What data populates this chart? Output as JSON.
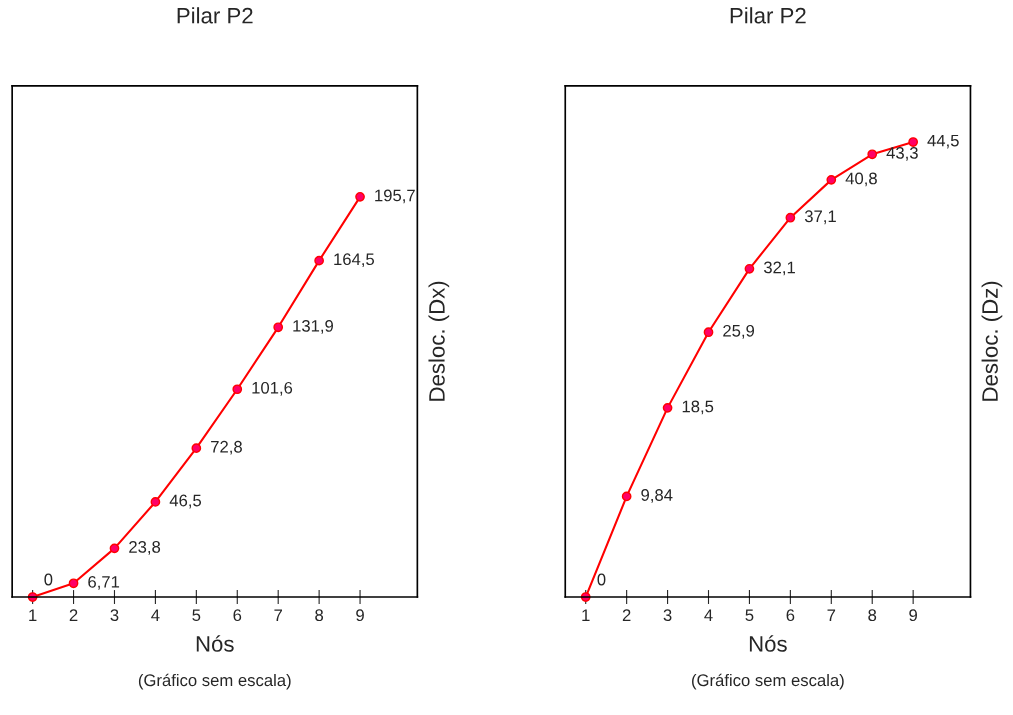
{
  "chart_data": [
    {
      "type": "line",
      "title": "Pilar P2",
      "xlabel": "Nós",
      "ylabel": "Desloc. (Dx)",
      "categories": [
        "1",
        "2",
        "3",
        "4",
        "5",
        "6",
        "7",
        "8",
        "9"
      ],
      "series": [
        {
          "color": "#ff0000",
          "values": [
            0,
            6.71,
            23.8,
            46.5,
            72.8,
            101.6,
            131.9,
            164.5,
            195.7
          ],
          "value_labels": [
            "0",
            "6,71",
            "23,8",
            "46,5",
            "72,8",
            "101,6",
            "131,9",
            "164,5",
            "195,7"
          ]
        }
      ],
      "ylim": [
        0,
        250
      ],
      "tick_labels": "x",
      "marker": "circle",
      "line_style": "solid",
      "grid": false,
      "annotations": [
        "(Gráfico sem escala)"
      ]
    },
    {
      "type": "line",
      "title": "Pilar P2",
      "xlabel": "Nós",
      "ylabel": "Desloc. (Dz)",
      "categories": [
        "1",
        "2",
        "3",
        "4",
        "5",
        "6",
        "7",
        "8",
        "9"
      ],
      "series": [
        {
          "color": "#ff0000",
          "values": [
            0,
            9.84,
            18.5,
            25.9,
            32.1,
            37.1,
            40.8,
            43.3,
            44.5
          ],
          "value_labels": [
            "0",
            "9,84",
            "18,5",
            "25,9",
            "32,1",
            "37,1",
            "40,8",
            "43,3",
            "44,5"
          ]
        }
      ],
      "ylim": [
        0,
        50
      ],
      "tick_labels": "x",
      "marker": "circle",
      "line_style": "solid",
      "grid": false,
      "annotations": [
        "(Gráfico sem escala)"
      ]
    }
  ]
}
